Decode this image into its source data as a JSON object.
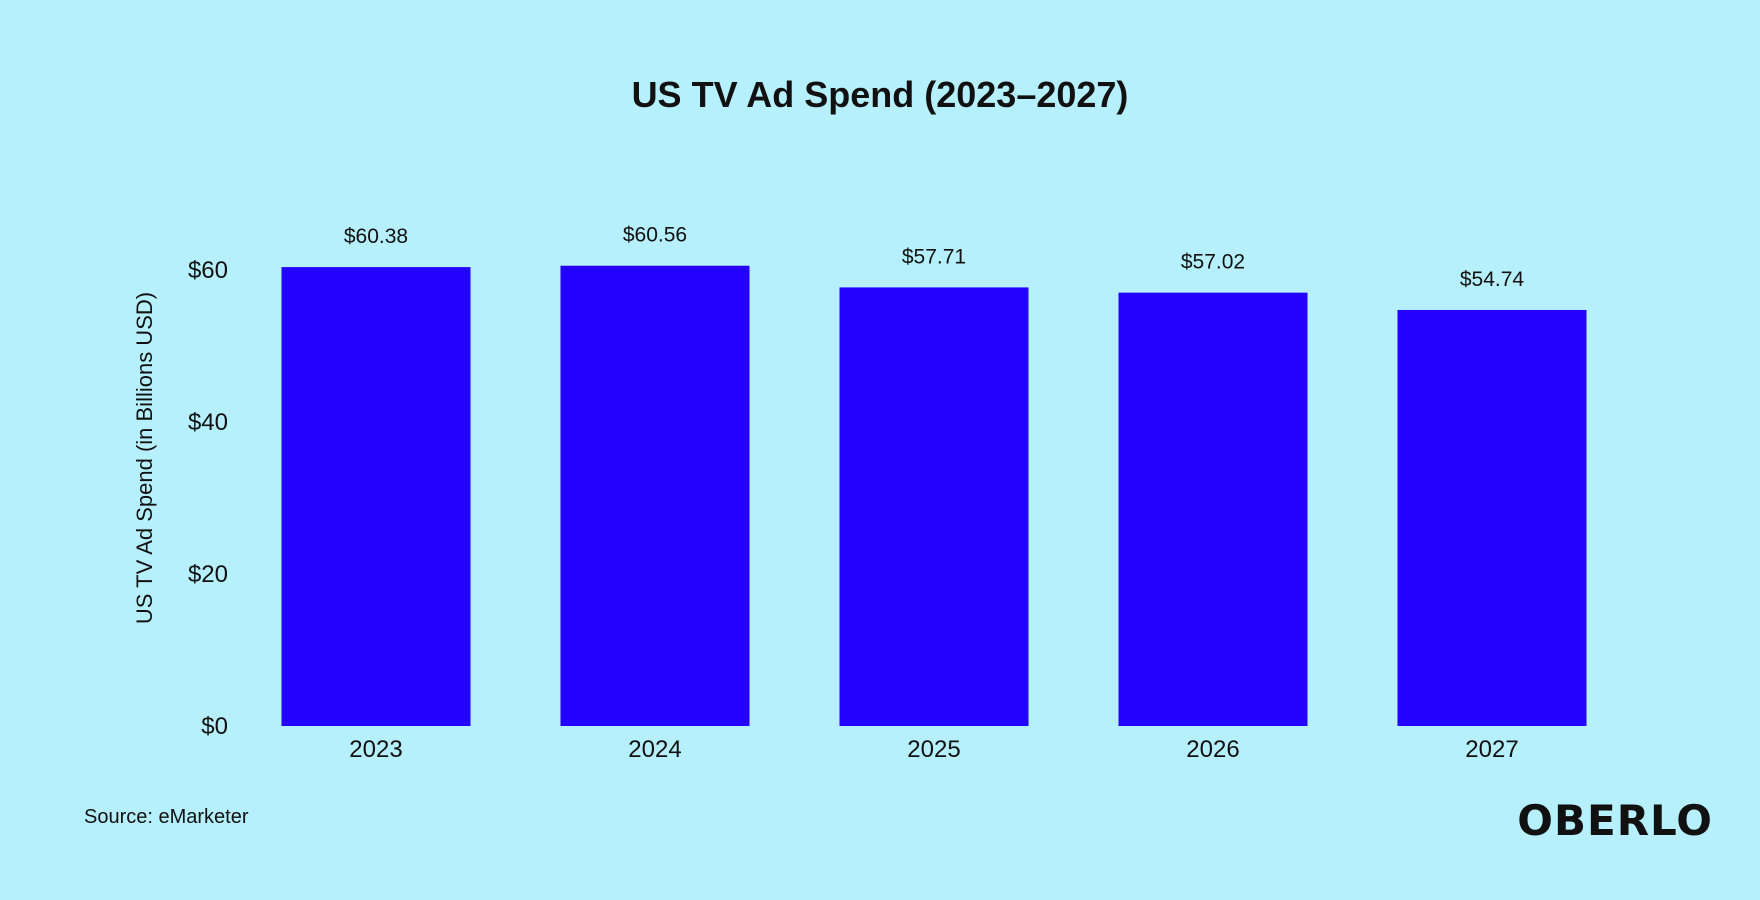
{
  "chart_data": {
    "type": "bar",
    "title": "US TV Ad Spend (2023–2027)",
    "xlabel": "",
    "ylabel": "US TV Ad Spend (in Billions USD)",
    "categories": [
      "2023",
      "2024",
      "2025",
      "2026",
      "2027"
    ],
    "values": [
      60.38,
      60.56,
      57.71,
      57.02,
      54.74
    ],
    "data_labels": [
      "$60.38",
      "$60.56",
      "$57.71",
      "$57.02",
      "$54.74"
    ],
    "y_ticks": [
      0,
      20,
      40,
      60
    ],
    "y_tick_labels": [
      "$0",
      "$20",
      "$40",
      "$60"
    ],
    "ylim": [
      0,
      60
    ],
    "grid": false,
    "legend": "none",
    "bar_color": "#2400ff"
  },
  "footer": {
    "source": "Source: eMarketer",
    "brand": "OBERLO"
  },
  "colors": {
    "background": "#b6f0fd",
    "text": "#111111"
  }
}
